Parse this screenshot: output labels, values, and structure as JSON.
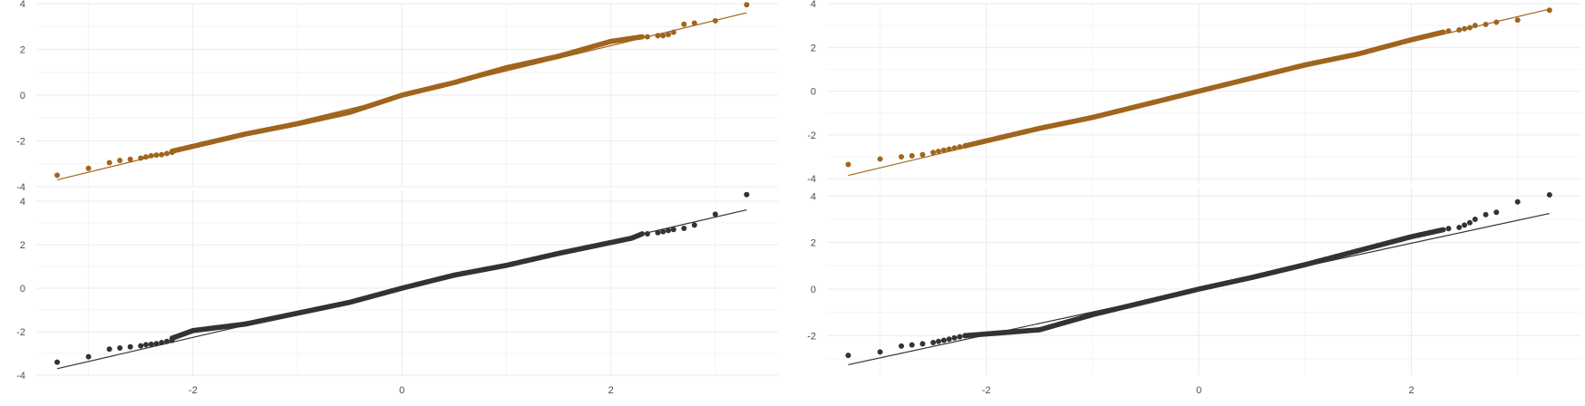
{
  "colors": {
    "orange": "#A0651D",
    "dark": "#333333",
    "grid_major": "#ebebeb",
    "grid_minor": "#f4f4f4",
    "text": "#4d4d4d"
  },
  "chart_data": [
    {
      "type": "scatter",
      "kind": "qq-plot",
      "panel": "left-top",
      "color": "orange",
      "title": "",
      "xlabel": "",
      "ylabel": "",
      "xlim": [
        -3.5,
        3.6
      ],
      "ylim": [
        -4.0,
        4.0
      ],
      "grid": true,
      "x_ticks": [],
      "y_ticks": [
        "-4",
        "-2",
        "0",
        "2",
        "4"
      ],
      "y_tick_values": [
        -4,
        -2,
        0,
        2,
        4
      ],
      "line": {
        "x": [
          -3.3,
          3.3
        ],
        "y": [
          -3.7,
          3.6
        ]
      },
      "tail_points": {
        "x": [
          -3.3,
          -3.0,
          -2.8,
          -2.7,
          -2.6,
          -2.5,
          -2.45,
          -2.4,
          -2.35,
          -2.3,
          -2.25,
          -2.2,
          2.35,
          2.45,
          2.5,
          2.55,
          2.6,
          2.7,
          2.8,
          3.0,
          3.3
        ],
        "y": [
          -3.5,
          -3.2,
          -2.95,
          -2.85,
          -2.8,
          -2.75,
          -2.7,
          -2.65,
          -2.62,
          -2.6,
          -2.55,
          -2.5,
          2.55,
          2.6,
          2.6,
          2.65,
          2.75,
          3.1,
          3.15,
          3.25,
          3.95
        ]
      },
      "body": {
        "x_range": [
          -2.2,
          2.3
        ],
        "anchors_x": [
          -2.2,
          -1.5,
          -1.0,
          -0.5,
          0.0,
          0.5,
          1.0,
          1.5,
          2.0,
          2.3
        ],
        "anchors_y": [
          -2.45,
          -1.7,
          -1.25,
          -0.75,
          0.0,
          0.55,
          1.2,
          1.7,
          2.35,
          2.55
        ]
      }
    },
    {
      "type": "scatter",
      "kind": "qq-plot",
      "panel": "left-bottom",
      "color": "dark",
      "title": "",
      "xlabel": "",
      "ylabel": "",
      "xlim": [
        -3.5,
        3.6
      ],
      "ylim": [
        -4.0,
        4.5
      ],
      "grid": true,
      "x_ticks": [
        "-2",
        "0",
        "2"
      ],
      "x_tick_values": [
        -2,
        0,
        2
      ],
      "y_ticks": [
        "-4",
        "-2",
        "0",
        "2",
        "4"
      ],
      "y_tick_values": [
        -4,
        -2,
        0,
        2,
        4
      ],
      "line": {
        "x": [
          -3.3,
          3.3
        ],
        "y": [
          -3.7,
          3.6
        ]
      },
      "tail_points": {
        "x": [
          -3.3,
          -3.0,
          -2.8,
          -2.7,
          -2.6,
          -2.5,
          -2.45,
          -2.4,
          -2.35,
          -2.3,
          -2.25,
          -2.2,
          2.35,
          2.45,
          2.5,
          2.55,
          2.6,
          2.7,
          2.8,
          3.0,
          3.3
        ],
        "y": [
          -3.4,
          -3.15,
          -2.8,
          -2.75,
          -2.7,
          -2.65,
          -2.6,
          -2.58,
          -2.55,
          -2.5,
          -2.45,
          -2.4,
          2.5,
          2.55,
          2.6,
          2.65,
          2.7,
          2.75,
          2.9,
          3.4,
          4.3
        ]
      },
      "body": {
        "x_range": [
          -2.2,
          2.3
        ],
        "anchors_x": [
          -2.2,
          -2.0,
          -1.5,
          -1.0,
          -0.5,
          0.0,
          0.5,
          1.0,
          1.5,
          2.0,
          2.2,
          2.3
        ],
        "anchors_y": [
          -2.3,
          -1.95,
          -1.65,
          -1.15,
          -0.65,
          0.0,
          0.6,
          1.05,
          1.6,
          2.1,
          2.3,
          2.5
        ]
      }
    },
    {
      "type": "scatter",
      "kind": "qq-plot",
      "panel": "right-top",
      "color": "orange",
      "title": "",
      "xlabel": "",
      "ylabel": "",
      "xlim": [
        -3.5,
        3.6
      ],
      "ylim": [
        -4.2,
        4.0
      ],
      "grid": true,
      "x_ticks": [],
      "y_ticks": [
        "-4",
        "-2",
        "0",
        "2",
        "4"
      ],
      "y_tick_values": [
        -4,
        -2,
        0,
        2,
        4
      ],
      "line": {
        "x": [
          -3.3,
          3.3
        ],
        "y": [
          -3.85,
          3.75
        ]
      },
      "tail_points": {
        "x": [
          -3.3,
          -3.0,
          -2.8,
          -2.7,
          -2.6,
          -2.5,
          -2.45,
          -2.4,
          -2.35,
          -2.3,
          -2.25,
          -2.2,
          2.35,
          2.45,
          2.5,
          2.55,
          2.6,
          2.7,
          2.8,
          3.0,
          3.3
        ],
        "y": [
          -3.35,
          -3.1,
          -3.0,
          -2.95,
          -2.9,
          -2.8,
          -2.75,
          -2.7,
          -2.65,
          -2.6,
          -2.55,
          -2.5,
          2.75,
          2.8,
          2.85,
          2.9,
          3.0,
          3.05,
          3.15,
          3.25,
          3.7
        ]
      },
      "body": {
        "x_range": [
          -2.2,
          2.3
        ],
        "anchors_x": [
          -2.2,
          -1.5,
          -1.0,
          -0.5,
          0.0,
          0.5,
          1.0,
          1.5,
          2.0,
          2.3
        ],
        "anchors_y": [
          -2.5,
          -1.7,
          -1.2,
          -0.6,
          0.0,
          0.6,
          1.2,
          1.7,
          2.35,
          2.7
        ]
      }
    },
    {
      "type": "scatter",
      "kind": "qq-plot",
      "panel": "right-bottom",
      "color": "dark",
      "title": "",
      "xlabel": "",
      "ylabel": "",
      "xlim": [
        -3.5,
        3.6
      ],
      "ylim": [
        -3.7,
        4.4
      ],
      "grid": true,
      "x_ticks": [
        "-2",
        "0",
        "2"
      ],
      "x_tick_values": [
        -2,
        0,
        2
      ],
      "y_ticks": [
        "-2",
        "0",
        "2",
        "4"
      ],
      "y_tick_values": [
        -2,
        0,
        2,
        4
      ],
      "line": {
        "x": [
          -3.3,
          3.3
        ],
        "y": [
          -3.25,
          3.25
        ]
      },
      "tail_points": {
        "x": [
          -3.3,
          -3.0,
          -2.8,
          -2.7,
          -2.6,
          -2.5,
          -2.45,
          -2.4,
          -2.35,
          -2.3,
          -2.25,
          -2.2,
          2.35,
          2.45,
          2.5,
          2.55,
          2.6,
          2.7,
          2.8,
          3.0,
          3.3
        ],
        "y": [
          -2.85,
          -2.7,
          -2.45,
          -2.4,
          -2.35,
          -2.3,
          -2.25,
          -2.2,
          -2.15,
          -2.1,
          -2.05,
          -2.0,
          2.6,
          2.65,
          2.75,
          2.85,
          3.0,
          3.2,
          3.3,
          3.75,
          4.05
        ]
      },
      "body": {
        "x_range": [
          -2.2,
          2.3
        ],
        "anchors_x": [
          -2.2,
          -1.5,
          -1.0,
          -0.5,
          0.0,
          0.5,
          1.0,
          1.5,
          2.0,
          2.3
        ],
        "anchors_y": [
          -2.0,
          -1.75,
          -1.1,
          -0.55,
          0.0,
          0.5,
          1.05,
          1.65,
          2.25,
          2.55
        ]
      }
    }
  ]
}
